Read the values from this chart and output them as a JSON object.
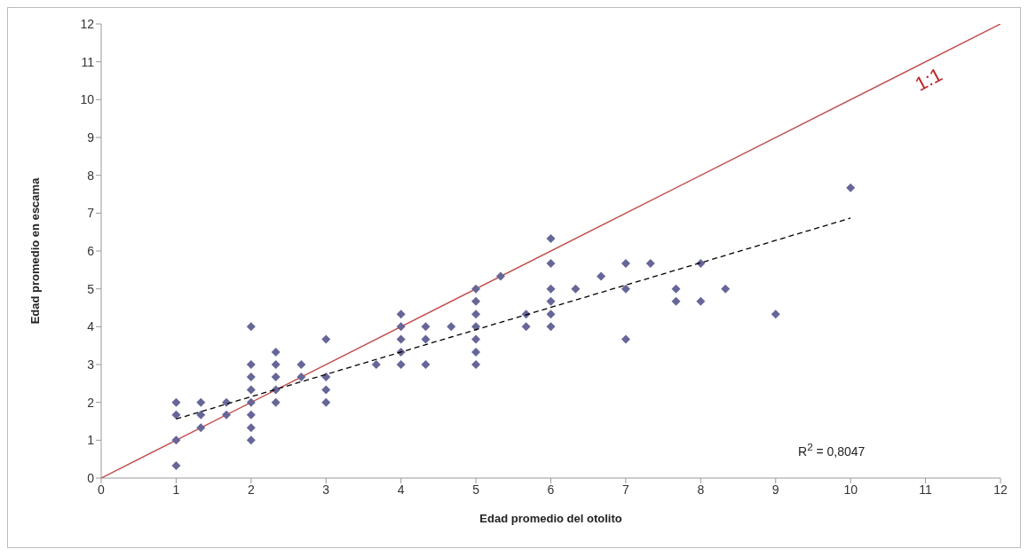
{
  "chart_data": {
    "type": "scatter",
    "xlabel": "Edad promedio del otolito",
    "ylabel": "Edad promedio en escama",
    "xlim": [
      0,
      12
    ],
    "ylim": [
      0,
      12
    ],
    "xticks": [
      0,
      1,
      2,
      3,
      4,
      5,
      6,
      7,
      8,
      9,
      10,
      11,
      12
    ],
    "yticks": [
      0,
      1,
      2,
      3,
      4,
      5,
      6,
      7,
      8,
      9,
      10,
      11,
      12
    ],
    "series": [
      {
        "type": "line",
        "color": "#c0504d",
        "line_style": "solid",
        "marker": "none",
        "x": [
          0,
          12
        ],
        "values": [
          0,
          12
        ]
      },
      {
        "color": "#666699",
        "marker": "diamond",
        "x": [
          1,
          1,
          1,
          1,
          1.33,
          1.33,
          1.33,
          1.67,
          1.67,
          2,
          2,
          2,
          2,
          2,
          2,
          2,
          2,
          2.33,
          2.33,
          2.33,
          2.33,
          2.33,
          2.67,
          2.67,
          3,
          3,
          3,
          3,
          3.67,
          4,
          4,
          4,
          4,
          4,
          4.33,
          4.33,
          4.33,
          4.67,
          5,
          5,
          5,
          5,
          5,
          5,
          5,
          5.33,
          5.67,
          5.67,
          6,
          6,
          6,
          6,
          6,
          6,
          6.33,
          6.67,
          7,
          7,
          7,
          7.33,
          7.67,
          7.67,
          8,
          8,
          8.33,
          9,
          10
        ],
        "values": [
          2,
          1.67,
          1,
          0.33,
          2,
          1.67,
          1.33,
          2,
          1.67,
          4,
          3,
          2.67,
          2.33,
          2,
          1.67,
          1.33,
          1,
          3.33,
          3,
          2.67,
          2.33,
          2,
          3,
          2.67,
          3.67,
          2.67,
          2.33,
          2,
          3,
          4.33,
          4,
          3.67,
          3.33,
          3,
          4,
          3.67,
          3,
          4,
          5,
          4.67,
          4.33,
          4,
          3.67,
          3.33,
          3,
          5.33,
          4.33,
          4,
          6.33,
          5.67,
          5,
          4.67,
          4.33,
          4,
          5,
          5.33,
          5.67,
          5,
          3.67,
          5.67,
          5,
          4.67,
          5.67,
          4.67,
          5,
          4.33,
          7.67
        ]
      },
      {
        "type": "line",
        "color": "#000000",
        "line_style": "dashed",
        "marker": "none",
        "x": [
          1,
          10
        ],
        "values": [
          1.56,
          6.87
        ]
      }
    ],
    "annotations": [
      "1:1",
      "R$^{2}$ = 0,8047"
    ]
  }
}
